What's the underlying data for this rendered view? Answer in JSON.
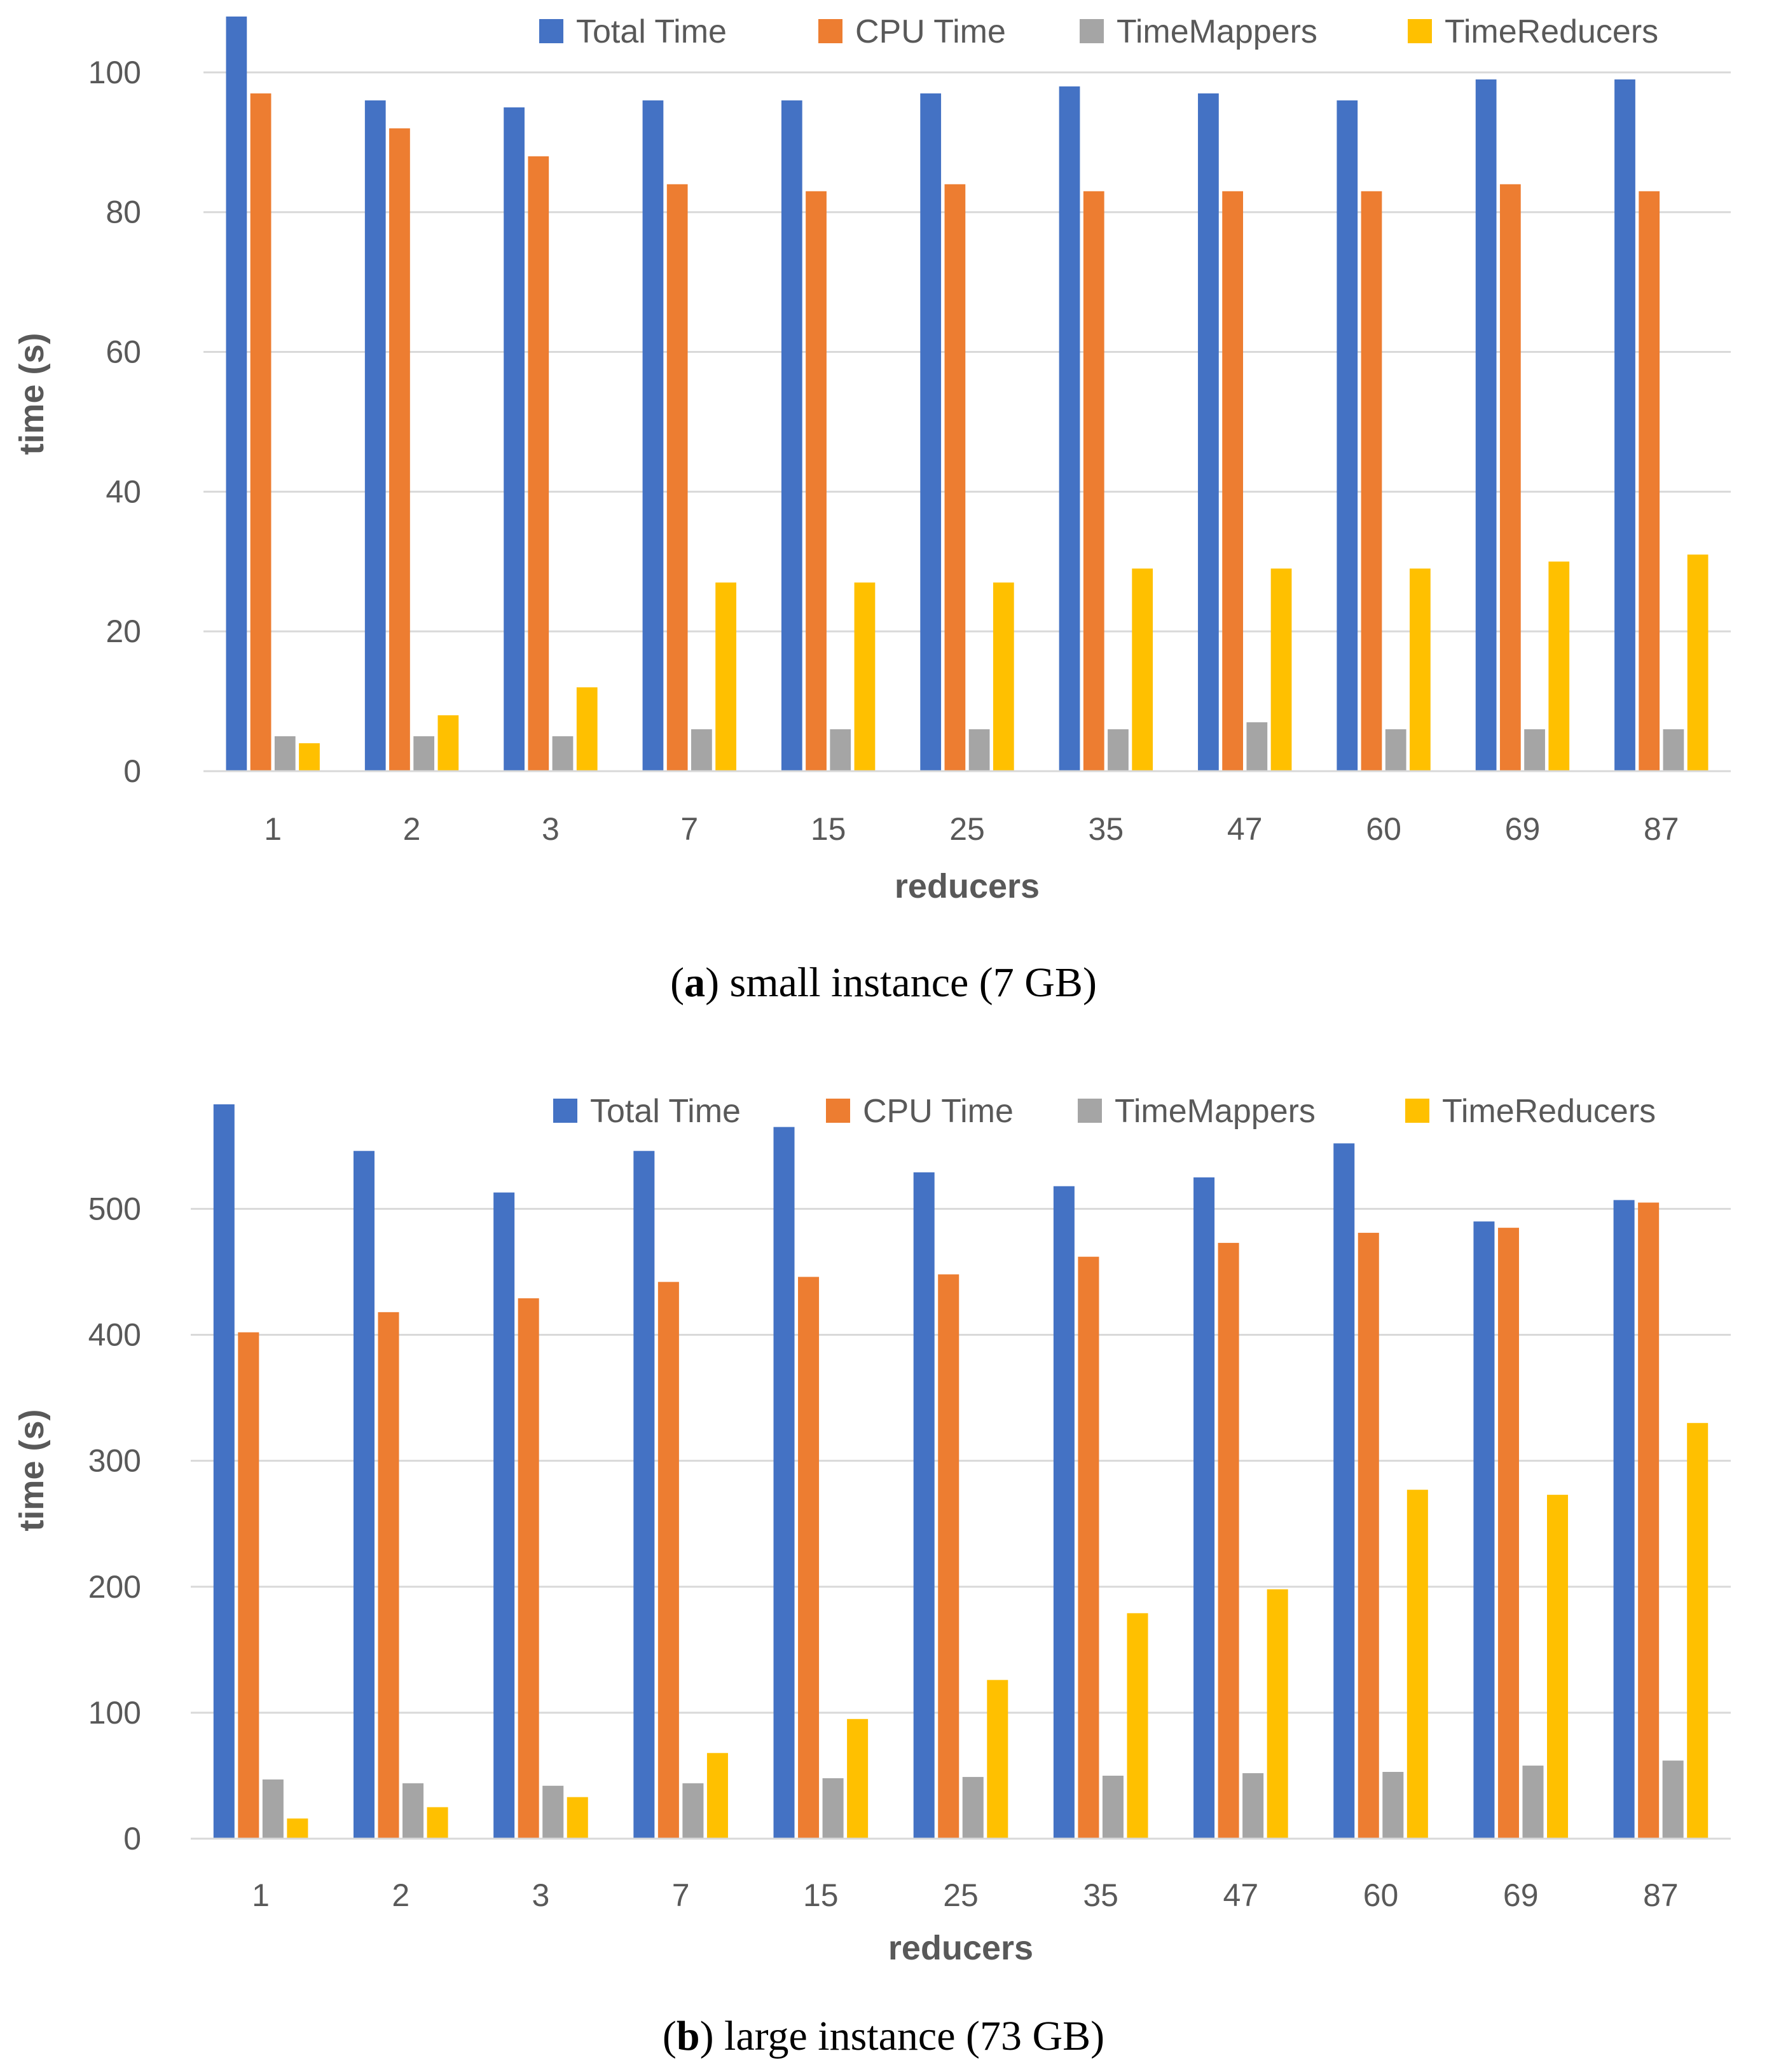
{
  "chart_data": [
    {
      "type": "bar",
      "caption_letter": "a",
      "caption_text": "small instance (7 GB)",
      "xlabel": "reducers",
      "ylabel": "time (s)",
      "ylim": [
        0,
        108
      ],
      "yticks": [
        0,
        20,
        40,
        60,
        80,
        100
      ],
      "grid": true,
      "legend": "top",
      "categories": [
        "1",
        "2",
        "3",
        "7",
        "15",
        "25",
        "35",
        "47",
        "60",
        "69",
        "87"
      ],
      "series": [
        {
          "name": "Total Time",
          "color": "#4472C4",
          "values": [
            108,
            96,
            95,
            96,
            96,
            97,
            98,
            97,
            96,
            99,
            99
          ]
        },
        {
          "name": "CPU Time",
          "color": "#ED7D31",
          "values": [
            97,
            92,
            88,
            84,
            83,
            84,
            83,
            83,
            83,
            84,
            83
          ]
        },
        {
          "name": "TimeMappers",
          "color": "#A5A5A5",
          "values": [
            5,
            5,
            5,
            6,
            6,
            6,
            6,
            7,
            6,
            6,
            6
          ]
        },
        {
          "name": "TimeReducers",
          "color": "#FFC000",
          "values": [
            4,
            8,
            12,
            27,
            27,
            27,
            29,
            29,
            29,
            30,
            31
          ]
        }
      ]
    },
    {
      "type": "bar",
      "caption_letter": "b",
      "caption_text": "large instance (73 GB)",
      "xlabel": "reducers",
      "ylabel": "time (s)",
      "ylim": [
        0,
        585
      ],
      "yticks": [
        0,
        100,
        200,
        300,
        400,
        500
      ],
      "grid": true,
      "legend": "top",
      "categories": [
        "1",
        "2",
        "3",
        "7",
        "15",
        "25",
        "35",
        "47",
        "60",
        "69",
        "87"
      ],
      "series": [
        {
          "name": "Total Time",
          "color": "#4472C4",
          "values": [
            583,
            546,
            513,
            546,
            565,
            529,
            518,
            525,
            552,
            490,
            507
          ]
        },
        {
          "name": "CPU Time",
          "color": "#ED7D31",
          "values": [
            402,
            418,
            429,
            442,
            446,
            448,
            462,
            473,
            481,
            485,
            505
          ]
        },
        {
          "name": "TimeMappers",
          "color": "#A5A5A5",
          "values": [
            47,
            44,
            42,
            44,
            48,
            49,
            50,
            52,
            53,
            58,
            62
          ]
        },
        {
          "name": "TimeReducers",
          "color": "#FFC000",
          "values": [
            16,
            25,
            33,
            68,
            95,
            126,
            179,
            198,
            277,
            273,
            330
          ]
        }
      ]
    }
  ]
}
